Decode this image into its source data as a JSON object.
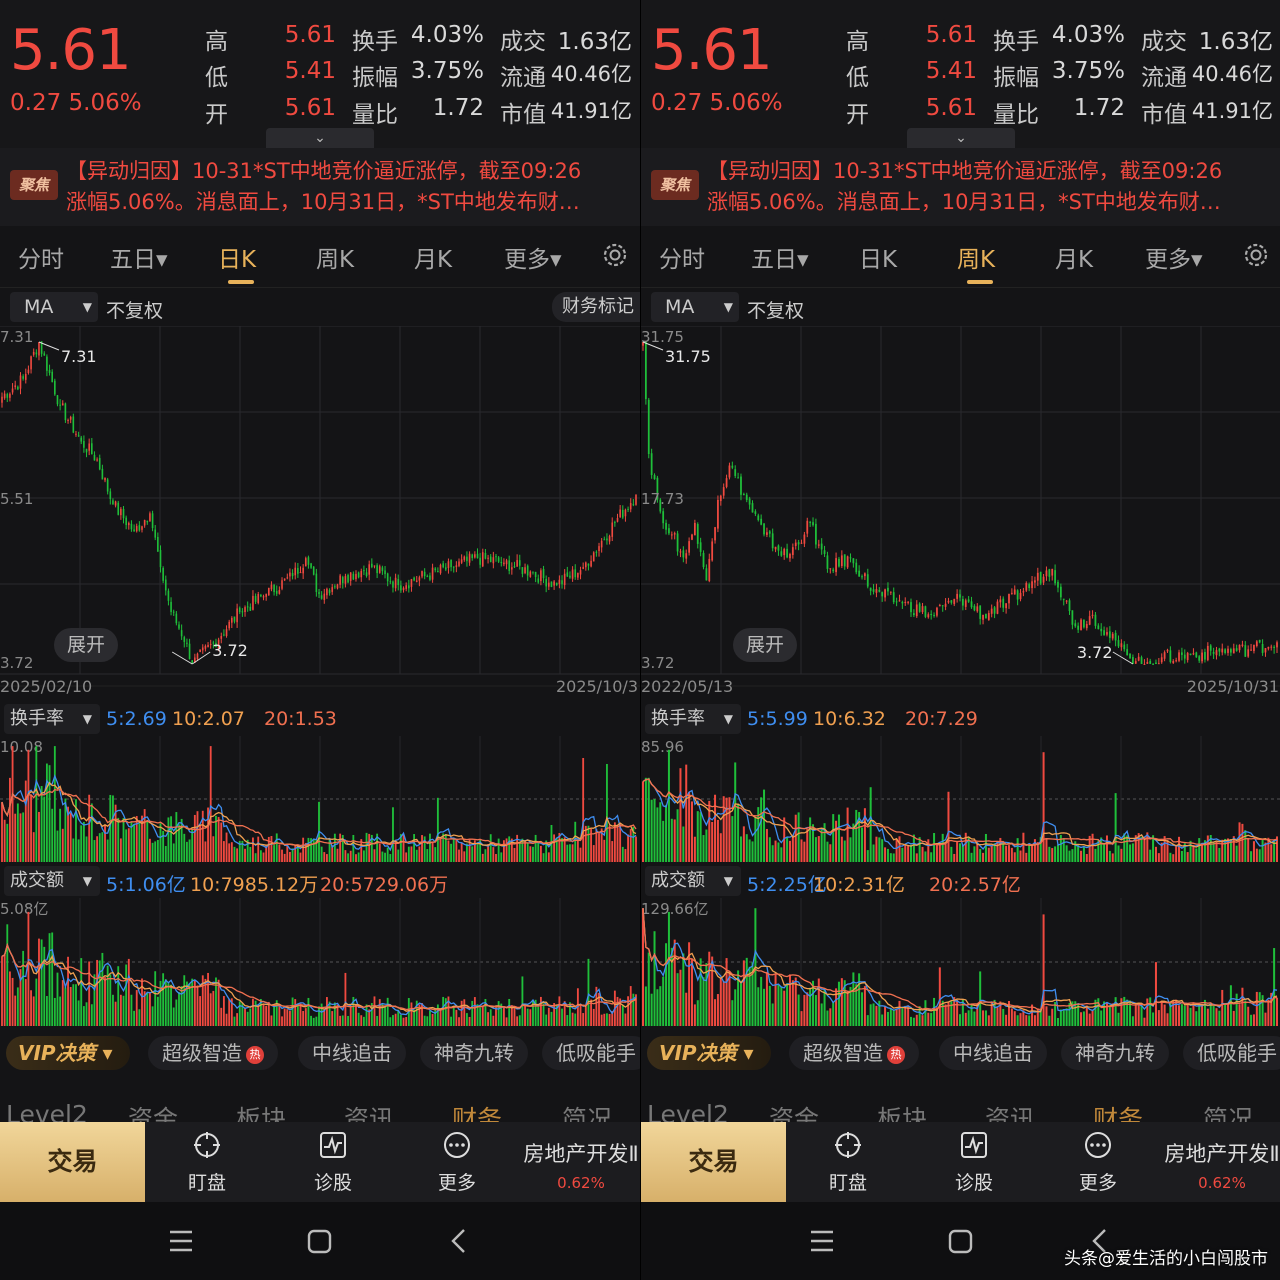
{
  "panels": [
    {
      "id": "left",
      "quote": {
        "price": "5.61",
        "change": "0.27 5.06%",
        "rows": [
          {
            "l1": "高",
            "v1": "5.61",
            "l2": "换手",
            "v2": "4.03%",
            "l3": "成交",
            "v3": "1.63亿"
          },
          {
            "l1": "低",
            "v1": "5.41",
            "l2": "振幅",
            "v2": "3.75%",
            "l3": "流通",
            "v3": "40.46亿"
          },
          {
            "l1": "开",
            "v1": "5.61",
            "l2": "量比",
            "v2": "1.72",
            "l3": "市值",
            "v3": "41.91亿"
          }
        ]
      },
      "news": {
        "badge": "聚焦",
        "line1": "【异动归因】10-31*ST中地竞价逼近涨停，截至09:26",
        "line2": "涨幅5.06%。消息面上，10月31日，*ST中地发布财…"
      },
      "tabs": [
        {
          "label": "分时"
        },
        {
          "label": "五日▾"
        },
        {
          "label": "日K"
        },
        {
          "label": "周K"
        },
        {
          "label": "月K"
        },
        {
          "label": "更多▾"
        }
      ],
      "active_tab": 2,
      "ma_label": "MA",
      "adj_label": "不复权",
      "fin_label": "财务标记",
      "expand_label": "展开",
      "turnover": {
        "name": "换手率",
        "ma5": "5:2.69",
        "ma10": "10:2.07",
        "ma20": "20:1.53"
      },
      "amount": {
        "name": "成交额",
        "ma5": "5:1.06亿",
        "ma10": "10:7985.12万",
        "ma20": "20:5729.06万"
      },
      "strip": {
        "vip": "VIP决策 ▾",
        "items": [
          "超级智造",
          "中线追击",
          "神奇九转",
          "低吸能手"
        ],
        "hot": "热"
      },
      "tabs2": [
        "Level2",
        "资金",
        "板块",
        "资讯",
        "财务",
        "简况"
      ],
      "active_tab2": 4,
      "bottom": {
        "trade": "交易",
        "items": [
          "盯盘",
          "诊股",
          "更多"
        ],
        "sector_name": "房地产开发Ⅱ",
        "sector_pct": "0.62%"
      }
    },
    {
      "id": "right",
      "quote": {
        "price": "5.61",
        "change": "0.27 5.06%",
        "rows": [
          {
            "l1": "高",
            "v1": "5.61",
            "l2": "换手",
            "v2": "4.03%",
            "l3": "成交",
            "v3": "1.63亿"
          },
          {
            "l1": "低",
            "v1": "5.41",
            "l2": "振幅",
            "v2": "3.75%",
            "l3": "流通",
            "v3": "40.46亿"
          },
          {
            "l1": "开",
            "v1": "5.61",
            "l2": "量比",
            "v2": "1.72",
            "l3": "市值",
            "v3": "41.91亿"
          }
        ]
      },
      "news": {
        "badge": "聚焦",
        "line1": "【异动归因】10-31*ST中地竞价逼近涨停，截至09:26",
        "line2": "涨幅5.06%。消息面上，10月31日，*ST中地发布财…"
      },
      "tabs": [
        {
          "label": "分时"
        },
        {
          "label": "五日▾"
        },
        {
          "label": "日K"
        },
        {
          "label": "周K"
        },
        {
          "label": "月K"
        },
        {
          "label": "更多▾"
        }
      ],
      "active_tab": 3,
      "ma_label": "MA",
      "adj_label": "不复权",
      "fin_label": "",
      "expand_label": "展开",
      "turnover": {
        "name": "换手率",
        "ma5": "5:5.99",
        "ma10": "10:6.32",
        "ma20": "20:7.29"
      },
      "amount": {
        "name": "成交额",
        "ma5": "5:2.25亿",
        "ma10": "10:2.31亿",
        "ma20": "20:2.57亿"
      },
      "strip": {
        "vip": "VIP决策 ▾",
        "items": [
          "超级智造",
          "中线追击",
          "神奇九转",
          "低吸能手"
        ],
        "hot": "热"
      },
      "tabs2": [
        "Level2",
        "资金",
        "板块",
        "资讯",
        "财务",
        "简况"
      ],
      "active_tab2": 4,
      "bottom": {
        "trade": "交易",
        "items": [
          "盯盘",
          "诊股",
          "更多"
        ],
        "sector_name": "房地产开发Ⅱ",
        "sector_pct": "0.62%"
      }
    }
  ],
  "watermark": "头条@爱生活的小白闯股市",
  "chart_data": [
    {
      "type": "candlestick",
      "period": "日K",
      "x_start": "2025/02/10",
      "x_end": "2025/10/3",
      "y_max": 7.31,
      "y_mid": 5.51,
      "y_min": 3.72,
      "annot_high": "7.31",
      "annot_low": "3.72",
      "ylim": [
        3.72,
        7.31
      ],
      "turnover_ymax": "10.08",
      "amount_ymax": "5.08亿",
      "keypoints": [
        [
          0,
          6.7
        ],
        [
          8,
          6.9
        ],
        [
          14,
          7.31
        ],
        [
          22,
          6.6
        ],
        [
          30,
          6.2
        ],
        [
          36,
          6.0
        ],
        [
          42,
          5.5
        ],
        [
          50,
          5.2
        ],
        [
          56,
          5.4
        ],
        [
          60,
          4.8
        ],
        [
          64,
          4.3
        ],
        [
          70,
          3.95
        ],
        [
          72,
          3.72
        ],
        [
          80,
          3.95
        ],
        [
          90,
          4.3
        ],
        [
          100,
          4.5
        ],
        [
          110,
          4.7
        ],
        [
          115,
          4.9
        ],
        [
          120,
          4.5
        ],
        [
          130,
          4.7
        ],
        [
          140,
          4.8
        ],
        [
          150,
          4.6
        ],
        [
          160,
          4.7
        ],
        [
          170,
          4.8
        ],
        [
          180,
          4.9
        ],
        [
          190,
          4.85
        ],
        [
          200,
          4.75
        ],
        [
          210,
          4.6
        ],
        [
          220,
          4.8
        ],
        [
          232,
          5.3
        ],
        [
          240,
          5.61
        ]
      ]
    },
    {
      "type": "candlestick",
      "period": "周K",
      "x_start": "2022/05/13",
      "x_end": "2025/10/31",
      "y_max": 31.75,
      "y_mid": 17.73,
      "y_min": 3.72,
      "annot_high": "31.75",
      "annot_low": "3.72",
      "ylim": [
        3.72,
        31.75
      ],
      "turnover_ymax": "85.96",
      "amount_ymax": "129.66亿",
      "keypoints": [
        [
          0,
          31.75
        ],
        [
          2,
          22
        ],
        [
          6,
          17
        ],
        [
          10,
          15
        ],
        [
          14,
          13
        ],
        [
          18,
          16
        ],
        [
          22,
          11
        ],
        [
          26,
          18
        ],
        [
          30,
          21
        ],
        [
          36,
          18
        ],
        [
          42,
          15
        ],
        [
          50,
          13
        ],
        [
          58,
          16
        ],
        [
          64,
          12
        ],
        [
          72,
          13
        ],
        [
          80,
          10
        ],
        [
          90,
          9
        ],
        [
          100,
          8
        ],
        [
          110,
          9.5
        ],
        [
          118,
          8
        ],
        [
          126,
          9
        ],
        [
          136,
          11
        ],
        [
          142,
          12
        ],
        [
          150,
          7
        ],
        [
          156,
          8
        ],
        [
          162,
          6
        ],
        [
          168,
          4.5
        ],
        [
          174,
          3.72
        ],
        [
          180,
          4.3
        ],
        [
          190,
          4.5
        ],
        [
          200,
          4.8
        ],
        [
          210,
          5.0
        ],
        [
          220,
          5.61
        ]
      ]
    }
  ]
}
